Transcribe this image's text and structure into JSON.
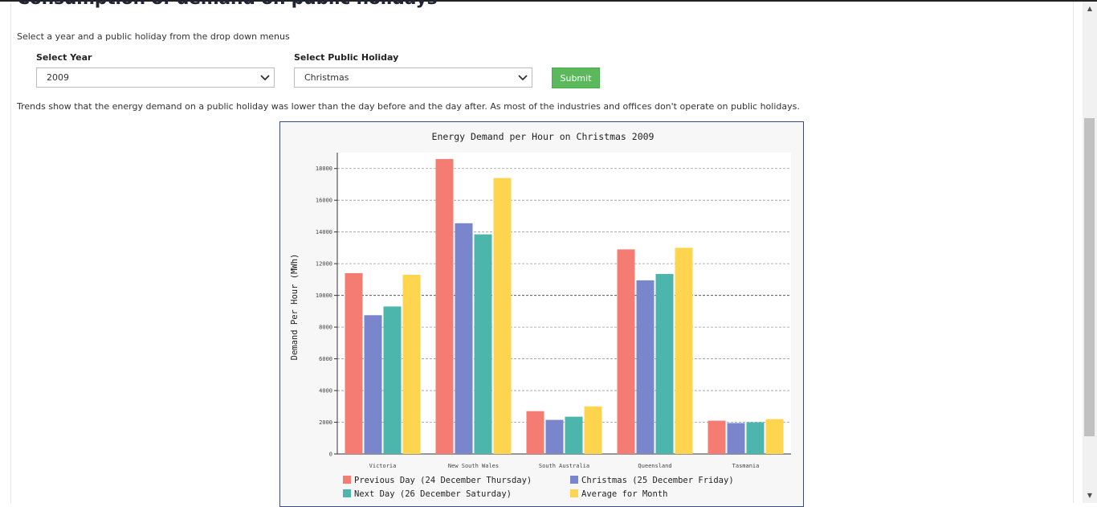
{
  "page": {
    "title": "Consumption of demand on public holidays",
    "instructions": "Select a year and a public holiday from the drop down menus",
    "trends_text": "Trends show that the energy demand on a public holiday was lower than the day before and the day after. As most of the industries and offices don't operate on public holidays."
  },
  "form": {
    "year_label": "Select Year",
    "year_value": "2009",
    "holiday_label": "Select Public Holiday",
    "holiday_value": "Christmas",
    "submit_label": "Submit",
    "submit_color": "#5cb85c"
  },
  "chart_data": {
    "type": "bar",
    "title": "Energy Demand per Hour on Christmas 2009",
    "xlabel": "",
    "ylabel": "Demand Per Hour (MWh)",
    "ylim": [
      0,
      19000
    ],
    "yticks": [
      0,
      2000,
      4000,
      6000,
      8000,
      10000,
      12000,
      14000,
      16000,
      18000
    ],
    "grid": true,
    "legend_position": "bottom",
    "categories": [
      "Victoria",
      "New South Wales",
      "South Australia",
      "Queensland",
      "Tasmania"
    ],
    "series": [
      {
        "name": "Previous Day (24 December Thursday)",
        "color": "#f57c73",
        "values": [
          11400,
          18600,
          2700,
          12900,
          2100
        ]
      },
      {
        "name": "Christmas (25 December Friday)",
        "color": "#7986cb",
        "values": [
          8750,
          14550,
          2150,
          10950,
          1950
        ]
      },
      {
        "name": "Next Day (26 December Saturday)",
        "color": "#4db6ac",
        "values": [
          9300,
          13850,
          2350,
          11350,
          2000
        ]
      },
      {
        "name": "Average for Month",
        "color": "#ffd54f",
        "values": [
          11300,
          17400,
          3000,
          13000,
          2200
        ]
      }
    ]
  }
}
